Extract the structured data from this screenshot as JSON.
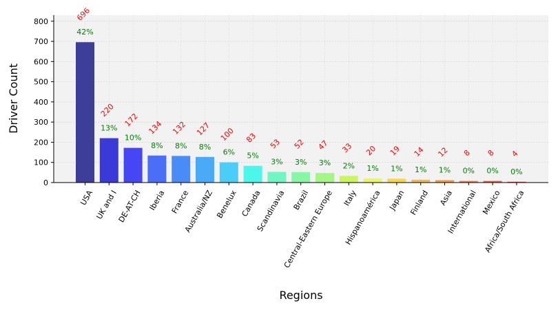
{
  "chart_data": {
    "type": "bar",
    "title": "",
    "xlabel": "Regions",
    "ylabel": "Driver Count",
    "ylim": [
      0,
      830
    ],
    "yticks": [
      0,
      100,
      200,
      300,
      400,
      500,
      600,
      700,
      800
    ],
    "grid": true,
    "categories": [
      "USA",
      "UK and I",
      "DE-AT-CH",
      "Iberia",
      "France",
      "Australia/NZ",
      "Benelux",
      "Canada",
      "Scandinavia",
      "Brazil",
      "Central-Eastern Europe",
      "Italy",
      "Hispanoamérica",
      "Japan",
      "Finland",
      "Asia",
      "International",
      "Mexico",
      "Africa/South Africa"
    ],
    "values": [
      696,
      220,
      172,
      134,
      132,
      127,
      100,
      83,
      53,
      52,
      47,
      33,
      20,
      19,
      14,
      12,
      8,
      8,
      4
    ],
    "count_labels": [
      "696",
      "220",
      "172",
      "134",
      "132",
      "127",
      "100",
      "83",
      "53",
      "52",
      "47",
      "33",
      "20",
      "19",
      "14",
      "12",
      "8",
      "8",
      "4"
    ],
    "percent_labels": [
      "42%",
      "13%",
      "10%",
      "8%",
      "8%",
      "8%",
      "6%",
      "5%",
      "3%",
      "3%",
      "3%",
      "2%",
      "1%",
      "1%",
      "1%",
      "1%",
      "0%",
      "0%",
      "0%"
    ],
    "colors": [
      "#3d3d9a",
      "#3a3ad8",
      "#4646f5",
      "#4a6ef7",
      "#4a8cf7",
      "#4aaaf7",
      "#4acdf7",
      "#4af7e8",
      "#6ef7c4",
      "#86f7a4",
      "#a4f786",
      "#c8f75c",
      "#eaf75a",
      "#f7d844",
      "#f7b844",
      "#f79a44",
      "#f77a44",
      "#f75a44",
      "#e34444"
    ],
    "count_color": "#ff0000",
    "percent_color": "#008000",
    "plot_background": "#f2f2f2"
  }
}
